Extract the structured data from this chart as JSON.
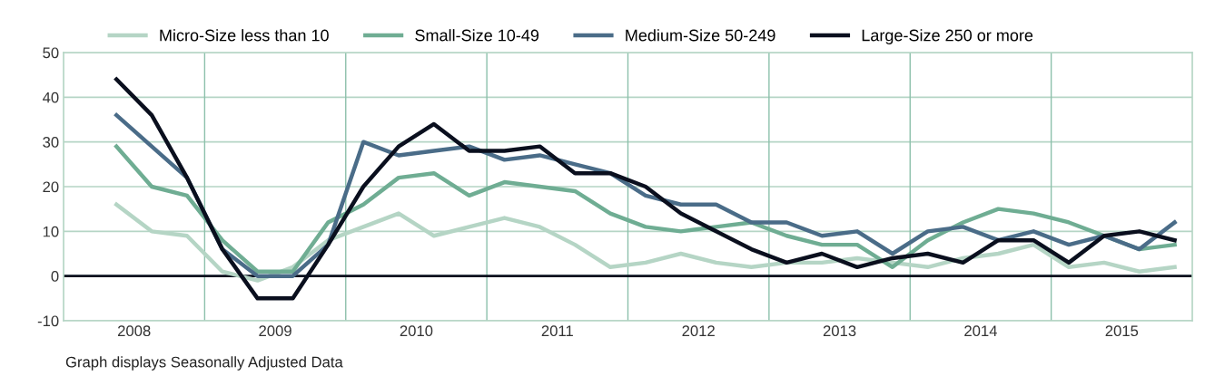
{
  "chart_data": {
    "type": "line",
    "x": [
      2008.375,
      2008.625,
      2008.875,
      2009.125,
      2009.375,
      2009.625,
      2009.875,
      2010.125,
      2010.375,
      2010.625,
      2010.875,
      2011.125,
      2011.375,
      2011.625,
      2011.875,
      2012.125,
      2012.375,
      2012.625,
      2012.875,
      2013.125,
      2013.375,
      2013.625,
      2013.875,
      2014.125,
      2014.375,
      2014.625,
      2014.875,
      2015.125,
      2015.375,
      2015.625,
      2015.875
    ],
    "series": [
      {
        "name": "Micro-Size less than 10",
        "color": "#b5d5c5",
        "values": [
          16,
          10,
          9,
          1,
          -1,
          2,
          8,
          11,
          14,
          9,
          11,
          13,
          11,
          7,
          2,
          3,
          5,
          3,
          2,
          3,
          3,
          4,
          3,
          2,
          4,
          5,
          7,
          2,
          3,
          1,
          2
        ]
      },
      {
        "name": "Small-Size 10-49",
        "color": "#6fad93",
        "values": [
          29,
          20,
          18,
          8,
          1,
          1,
          12,
          16,
          22,
          23,
          18,
          21,
          20,
          19,
          14,
          11,
          10,
          11,
          12,
          9,
          7,
          7,
          2,
          8,
          12,
          15,
          14,
          12,
          9,
          6,
          7
        ]
      },
      {
        "name": "Medium-Size 50-249",
        "color": "#4a6c88",
        "values": [
          36,
          29,
          22,
          6,
          0,
          0,
          7,
          30,
          27,
          28,
          29,
          26,
          27,
          25,
          23,
          18,
          16,
          16,
          12,
          12,
          9,
          10,
          5,
          10,
          11,
          8,
          10,
          7,
          9,
          6,
          12
        ]
      },
      {
        "name": "Large-Size 250 or more",
        "color": "#0a0f1e",
        "values": [
          44,
          36,
          22,
          6,
          -5,
          -5,
          7,
          20,
          29,
          34,
          28,
          28,
          29,
          23,
          23,
          20,
          14,
          10,
          6,
          3,
          5,
          2,
          4,
          5,
          3,
          8,
          8,
          3,
          9,
          10,
          8
        ]
      }
    ],
    "xlim": [
      2008,
      2016
    ],
    "xticks": [
      {
        "value": 2008.5,
        "label": "2008"
      },
      {
        "value": 2009.5,
        "label": "2009"
      },
      {
        "value": 2010.5,
        "label": "2010"
      },
      {
        "value": 2011.5,
        "label": "2011"
      },
      {
        "value": 2012.5,
        "label": "2012"
      },
      {
        "value": 2013.5,
        "label": "2013"
      },
      {
        "value": 2014.5,
        "label": "2014"
      },
      {
        "value": 2015.5,
        "label": "2015"
      }
    ],
    "ylim": [
      -10,
      50
    ],
    "yticks": [
      -10,
      0,
      10,
      20,
      30,
      40,
      50
    ],
    "grid": "y",
    "ref_lines": [
      {
        "axis": "y",
        "value": 0,
        "color": "#0a0f1e"
      },
      {
        "axis": "x",
        "value": 2009,
        "color": "#8cc0ab"
      },
      {
        "axis": "x",
        "value": 2010,
        "color": "#8cc0ab"
      },
      {
        "axis": "x",
        "value": 2011,
        "color": "#8cc0ab"
      },
      {
        "axis": "x",
        "value": 2012,
        "color": "#8cc0ab"
      },
      {
        "axis": "x",
        "value": 2013,
        "color": "#8cc0ab"
      },
      {
        "axis": "x",
        "value": 2014,
        "color": "#8cc0ab"
      },
      {
        "axis": "x",
        "value": 2015,
        "color": "#8cc0ab"
      }
    ],
    "legend": "top",
    "marker": "none",
    "line_style": "solid",
    "annotations": [
      "Graph displays Seasonally Adjusted Data"
    ]
  }
}
